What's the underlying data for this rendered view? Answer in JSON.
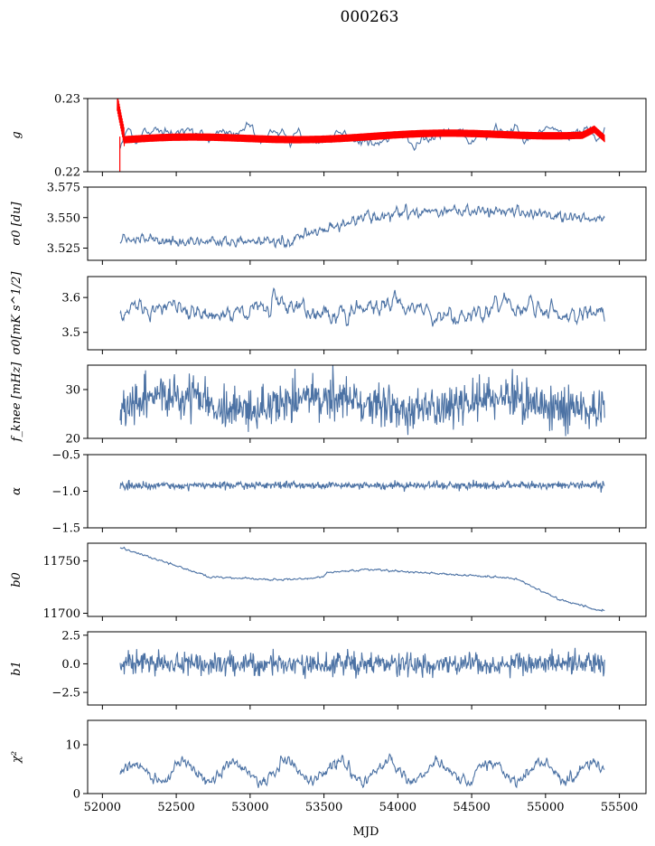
{
  "title": "000263",
  "xlabel": "MJD",
  "xticks": [
    52000,
    52500,
    53000,
    53500,
    54000,
    54500,
    55000,
    55500
  ],
  "colors": {
    "series": "#4c72a4",
    "fit": "#ff0000"
  },
  "chart_data": [
    {
      "type": "line",
      "ylabel": "g",
      "xlim": [
        51900,
        55680
      ],
      "ylim": [
        0.22,
        0.23
      ],
      "yticks": [
        0.22,
        0.23
      ],
      "series": [
        {
          "values": {
            "start": 52120,
            "end": 55400,
            "kind": "g_noisy"
          }
        },
        {
          "values": {
            "start": 52100,
            "end": 55400,
            "kind": "g_fit"
          }
        }
      ]
    },
    {
      "type": "line",
      "ylabel": "σ0 [du]",
      "xlim": [
        51900,
        55680
      ],
      "ylim": [
        3.515,
        3.575
      ],
      "yticks": [
        3.525,
        3.55,
        3.575
      ],
      "series": [
        {
          "values": {
            "start": 52120,
            "end": 55400,
            "kind": "sigma_du"
          }
        }
      ]
    },
    {
      "type": "line",
      "ylabel": "σ0[mK s^1/2]",
      "xlim": [
        51900,
        55680
      ],
      "ylim": [
        3.45,
        3.66
      ],
      "yticks": [
        3.5,
        3.6
      ],
      "series": [
        {
          "values": {
            "start": 52120,
            "end": 55400,
            "kind": "sigma_mk"
          }
        }
      ]
    },
    {
      "type": "line",
      "ylabel": "f_knee [mHz]",
      "xlim": [
        51900,
        55680
      ],
      "ylim": [
        20,
        35
      ],
      "yticks": [
        20,
        30
      ],
      "series": [
        {
          "values": {
            "start": 52120,
            "end": 55400,
            "kind": "fknee"
          }
        }
      ]
    },
    {
      "type": "line",
      "ylabel": "α",
      "xlim": [
        51900,
        55680
      ],
      "ylim": [
        -1.5,
        -0.5
      ],
      "yticks": [
        -1.5,
        -1.0,
        -0.5
      ],
      "series": [
        {
          "values": {
            "start": 52120,
            "end": 55400,
            "kind": "alpha"
          }
        }
      ]
    },
    {
      "type": "line",
      "ylabel": "b0",
      "xlim": [
        51900,
        55680
      ],
      "ylim": [
        11697,
        11767
      ],
      "yticks": [
        11700,
        11750
      ],
      "series": [
        {
          "values": {
            "start": 52120,
            "end": 55400,
            "kind": "b0"
          }
        }
      ]
    },
    {
      "type": "line",
      "ylabel": "b1",
      "xlim": [
        51900,
        55680
      ],
      "ylim": [
        -3.6,
        2.8
      ],
      "yticks": [
        -2.5,
        0.0,
        2.5
      ],
      "series": [
        {
          "values": {
            "start": 52120,
            "end": 55400,
            "kind": "b1"
          }
        }
      ]
    },
    {
      "type": "line",
      "ylabel": "χ²",
      "xlim": [
        51900,
        55680
      ],
      "ylim": [
        0,
        15
      ],
      "yticks": [
        0,
        10
      ],
      "series": [
        {
          "values": {
            "start": 52120,
            "end": 55400,
            "kind": "chi2"
          }
        }
      ]
    }
  ]
}
